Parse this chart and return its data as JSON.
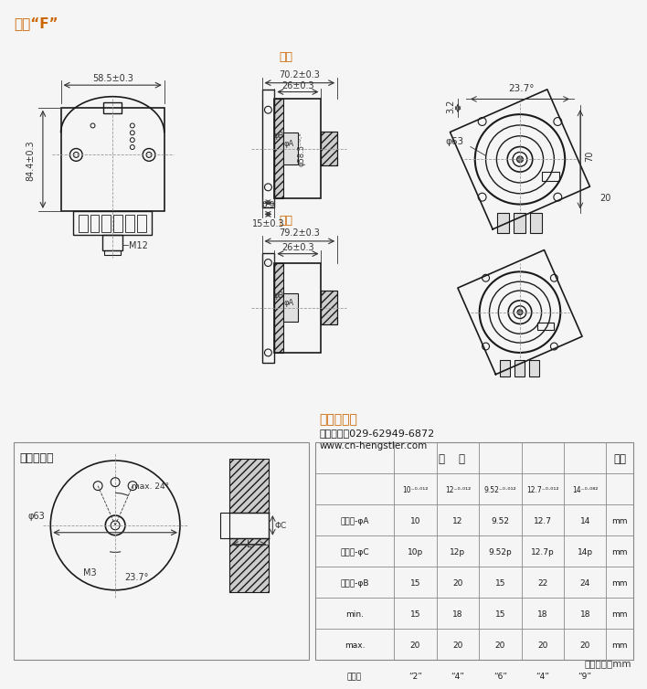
{
  "bg_color": "#f0f0f0",
  "line_color": "#1a1a1a",
  "dim_color": "#333333",
  "title_color": "#cc6600",
  "title": "轴套“F”",
  "label_danquan": "单圈",
  "label_duoquan": "多圈",
  "label_customer": "客户安装侧",
  "label_xian": "西安德伍拓",
  "company_line": "客户服务：029-62949-6872",
  "website": "www.cn-hengstler.com",
  "unit_note": "尺寸单位：mm",
  "table_row1_label": "空心轴-φA",
  "table_row2_label": "连接轴-φC",
  "table_row3_label": "夹紧环-φB",
  "table_row4_label": "min.",
  "table_row5_label": "max.",
  "table_row6_label": "轴代码",
  "dim_58_5": "58.5±0.3",
  "dim_84_4": "84.4±0.3",
  "dim_70_2": "70.2±0.3",
  "dim_26": "26±0.3",
  "dim_58_5d": "φ58.5⁻⁰⋅⁵",
  "dim_15": "15±0.3",
  "dim_79_2": "79.2±0.3",
  "dim_23_7": "23.7°",
  "dim_70": "70",
  "dim_20": "20",
  "dim_3_2": "3.2",
  "dim_phi63": "φ63",
  "dim_M12": "M12",
  "dim_M3": "M3",
  "dim_phiA": "φA",
  "dim_phiB": "φB",
  "phi_a_vals": [
    "10",
    "12",
    "9.52",
    "12.7",
    "14"
  ],
  "phi_c_vals": [
    "10p",
    "12p",
    "9.52p",
    "12.7p",
    "14p"
  ],
  "phi_b_vals": [
    "15",
    "20",
    "15",
    "22",
    "24"
  ],
  "l_min_vals": [
    "15",
    "18",
    "15",
    "18",
    "18"
  ],
  "l_max_vals": [
    "20",
    "20",
    "20",
    "20",
    "20"
  ],
  "code_vals": [
    "“2”",
    "“4”",
    "“6”",
    "“4”",
    "“9”"
  ],
  "col_headers": [
    "10⁻⁰·⁰¹²",
    "12⁻⁰·⁰¹²",
    "9.52⁻⁰·⁰¹²",
    "12.7⁻⁰·⁰¹²",
    "14⁻⁰·⁰⁸²"
  ]
}
